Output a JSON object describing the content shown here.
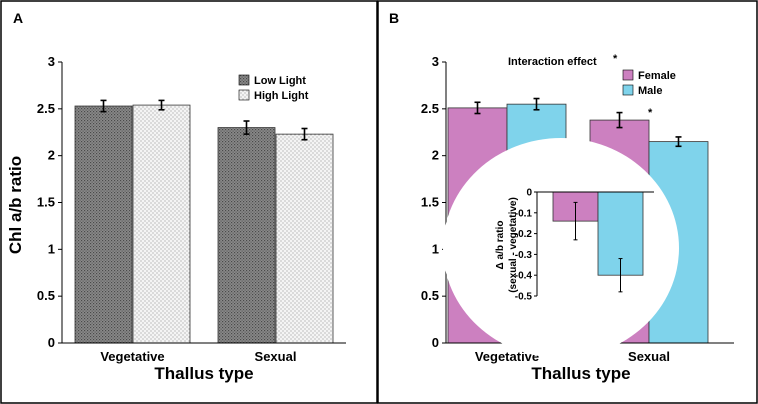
{
  "chart_data": [
    {
      "panel": "A",
      "type": "bar",
      "title": "",
      "xlabel": "Thallus type",
      "ylabel": "Chl a/b ratio",
      "ylim": [
        0,
        3
      ],
      "yticks": [
        "0",
        "0.5",
        "1",
        "1.5",
        "2",
        "2.5",
        "3"
      ],
      "categories": [
        "Vegetative",
        "Sexual"
      ],
      "series": [
        {
          "name": "Low Light",
          "values": [
            2.53,
            2.3
          ],
          "errors": [
            0.06,
            0.07
          ],
          "color": "#7f7f7f",
          "pattern": "dense-dots"
        },
        {
          "name": "High Light",
          "values": [
            2.54,
            2.23
          ],
          "errors": [
            0.05,
            0.06
          ],
          "color": "#f2f2f2",
          "pattern": "sparse-dots"
        }
      ],
      "legend": "top-right"
    },
    {
      "panel": "B",
      "type": "bar",
      "title": "",
      "xlabel": "Thallus type",
      "ylabel": "",
      "ylim": [
        0,
        3
      ],
      "yticks": [
        "0",
        "0.5",
        "1",
        "1.5",
        "2",
        "2.5",
        "3"
      ],
      "categories": [
        "Vegetative",
        "Sexual"
      ],
      "series": [
        {
          "name": "Female",
          "values": [
            2.51,
            2.38
          ],
          "errors": [
            0.06,
            0.08
          ],
          "color": "#cc80c0"
        },
        {
          "name": "Male",
          "values": [
            2.55,
            2.15
          ],
          "errors": [
            0.06,
            0.05
          ],
          "color": "#7fd3eb"
        }
      ],
      "legend": "top-right",
      "annotations": [
        {
          "text": "Interaction effect",
          "marker": "*"
        },
        {
          "text": "*",
          "category": "Sexual"
        }
      ],
      "inset": {
        "type": "bar",
        "ylabel_line1": "Δ a/b ratio",
        "ylabel_line2": "(sexual - vegetative)",
        "ylim": [
          -0.5,
          0
        ],
        "yticks": [
          "0",
          "-0.1",
          "-0.2",
          "-0.3",
          "-0.4",
          "-0.5"
        ],
        "categories": [
          "Female",
          "Male"
        ],
        "values": [
          -0.14,
          -0.4
        ],
        "errors": [
          0.09,
          0.08
        ]
      }
    }
  ]
}
